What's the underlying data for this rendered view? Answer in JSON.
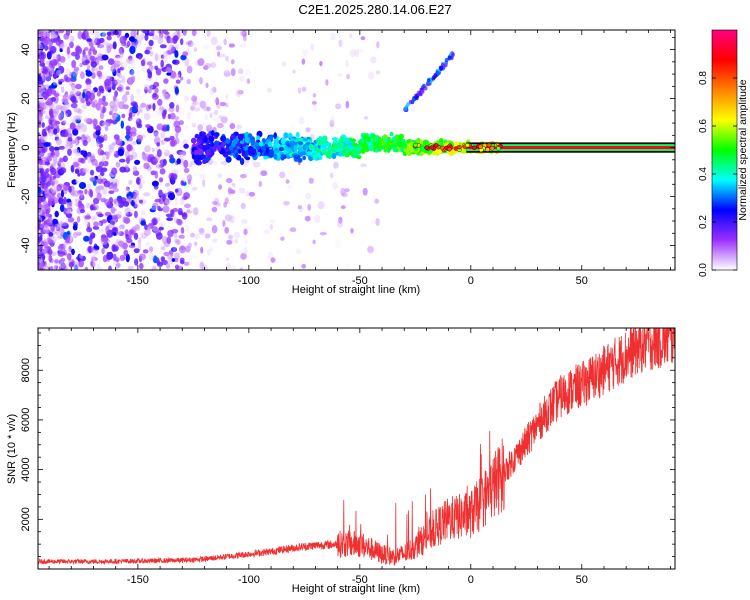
{
  "figure": {
    "title": "C2E1.2025.280.14.06.E27"
  },
  "chart_data": [
    {
      "type": "heatmap",
      "title": "C2E1.2025.280.14.06.E27",
      "xlabel": "Height of straight line (km)",
      "ylabel": "Frequency (Hz)",
      "xlim": [
        -195,
        92
      ],
      "ylim": [
        -50,
        48
      ],
      "x_ticks": [
        -150,
        -100,
        -50,
        0,
        50
      ],
      "y_ticks": [
        -40,
        -20,
        0,
        20,
        40
      ],
      "colorbar": {
        "label": "Normalized spectral amplitude",
        "range": [
          0,
          1
        ],
        "ticks": [
          0,
          0.2,
          0.4,
          0.6,
          0.8
        ],
        "tick_labels": [
          "0.0",
          "0.2",
          "0.4",
          "0.6",
          "0.8"
        ],
        "colormap": [
          "#ffffff",
          "#9b30ff",
          "#0000ff",
          "#00ffff",
          "#00ff00",
          "#ffff00",
          "#ff8000",
          "#ff0000",
          "#ff0080"
        ]
      },
      "features": [
        {
          "name": "noise",
          "x_range": [
            -195,
            -60
          ],
          "y_range": [
            -50,
            48
          ],
          "amplitude": 0.1
        },
        {
          "name": "carrier",
          "x_range": [
            -125,
            92
          ],
          "y_center": 0,
          "amplitude_start": 0.25,
          "amplitude_end": 0.9
        },
        {
          "name": "chirp",
          "x_range": [
            -30,
            -8
          ],
          "y_range": [
            15,
            38
          ],
          "amplitude": 0.25
        }
      ]
    },
    {
      "type": "line",
      "xlabel": "Height of straight line (km)",
      "ylabel": "SNR (10 * v/v)",
      "xlim": [
        -195,
        92
      ],
      "ylim": [
        0,
        9700
      ],
      "x_ticks": [
        -150,
        -100,
        -50,
        0,
        50
      ],
      "y_ticks": [
        2000,
        4000,
        6000,
        8000
      ],
      "color": "#f03030",
      "series": [
        {
          "x": [
            -195,
            -170,
            -150,
            -130,
            -120,
            -110,
            -100,
            -90,
            -80,
            -70,
            -60,
            -50,
            -45,
            -40,
            -35,
            -30,
            -25,
            -20,
            -15,
            -10,
            -5,
            0,
            5,
            10,
            15,
            20,
            25,
            30,
            35,
            40,
            45,
            50,
            55,
            60,
            65,
            70,
            75,
            80,
            85,
            92
          ],
          "y": [
            300,
            300,
            320,
            350,
            400,
            500,
            600,
            700,
            850,
            950,
            1000,
            1000,
            800,
            600,
            500,
            600,
            900,
            1300,
            1700,
            2000,
            2100,
            2200,
            2700,
            3300,
            3900,
            4500,
            5100,
            5800,
            6400,
            6900,
            7200,
            7400,
            7700,
            8000,
            8300,
            8600,
            8900,
            9100,
            9200,
            9300
          ]
        }
      ]
    }
  ]
}
